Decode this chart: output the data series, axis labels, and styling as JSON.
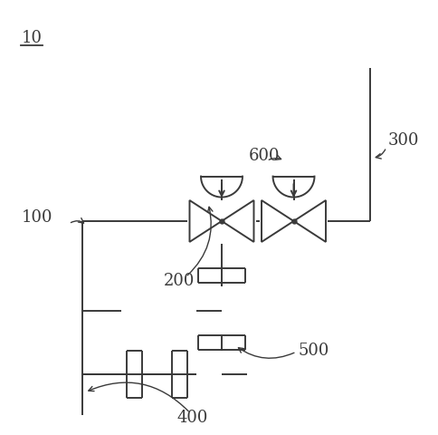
{
  "bg_color": "#ffffff",
  "line_color": "#3a3a3a",
  "lw": 1.4,
  "valve_size": 0.042,
  "dome_r": 0.026,
  "flange_size": 0.028
}
